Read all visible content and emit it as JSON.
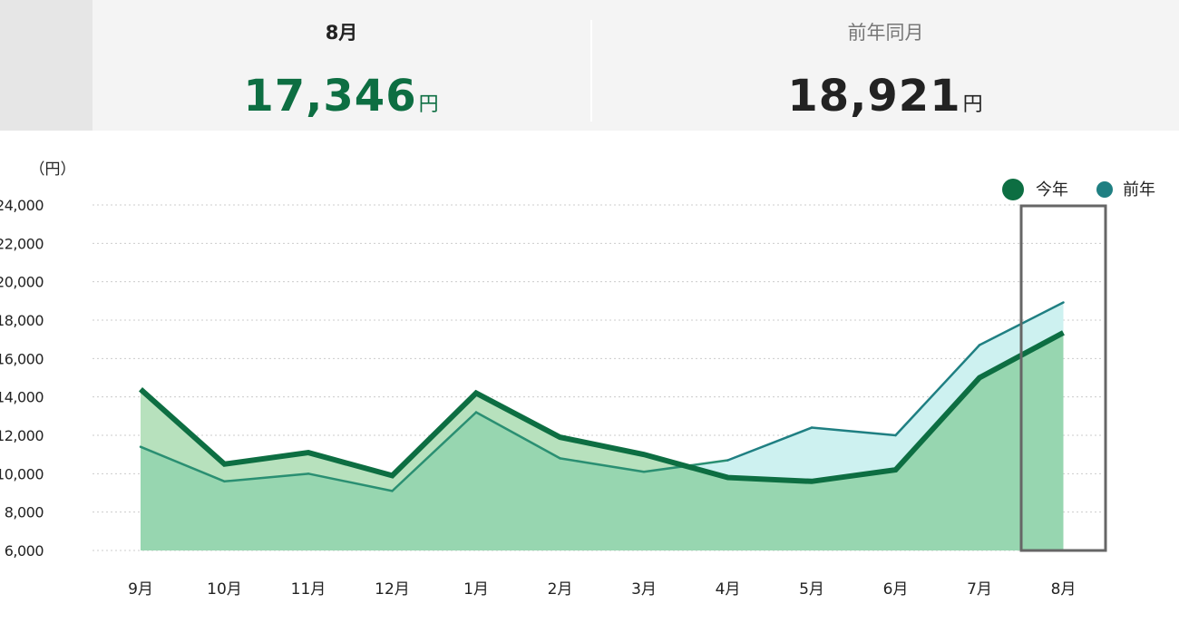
{
  "summary": {
    "current": {
      "label": "8月",
      "value": "17,346",
      "unit": "円"
    },
    "previous": {
      "label": "前年同月",
      "value": "18,921",
      "unit": "円"
    }
  },
  "chart_data": {
    "type": "area",
    "ylabel": "（円）",
    "ylim": [
      6000,
      24000
    ],
    "yticks": [
      6000,
      8000,
      10000,
      12000,
      14000,
      16000,
      18000,
      20000,
      22000,
      24000
    ],
    "ytick_labels": [
      "6,000",
      "8,000",
      "10,000",
      "12,000",
      "14,000",
      "16,000",
      "18,000",
      "20,000",
      "22,000",
      "24,000"
    ],
    "grid": true,
    "legend_position": "top-right",
    "categories": [
      "9月",
      "10月",
      "11月",
      "12月",
      "1月",
      "2月",
      "3月",
      "4月",
      "5月",
      "6月",
      "7月",
      "8月"
    ],
    "highlighted_category": "8月",
    "series": [
      {
        "name": "今年",
        "color": "#0d6e42",
        "values": [
          14400,
          10500,
          11100,
          9900,
          14200,
          11900,
          11000,
          9800,
          9600,
          10200,
          15000,
          17346
        ]
      },
      {
        "name": "前年",
        "color": "#1f7f82",
        "values": [
          11400,
          9600,
          10000,
          9100,
          13200,
          10800,
          10100,
          10700,
          12400,
          12000,
          16700,
          18921
        ]
      }
    ],
    "colors": {
      "base_fill": "#97d6b0",
      "this_year_above_fill": "#b7e1bd",
      "last_year_above_fill": "#cdf1f0",
      "this_year_line": "#0d6e42",
      "last_year_line": "#2a8f72",
      "last_year_line_upper": "#1f7f82",
      "grid": "#cccccc",
      "highlight_box": "#666666"
    }
  }
}
